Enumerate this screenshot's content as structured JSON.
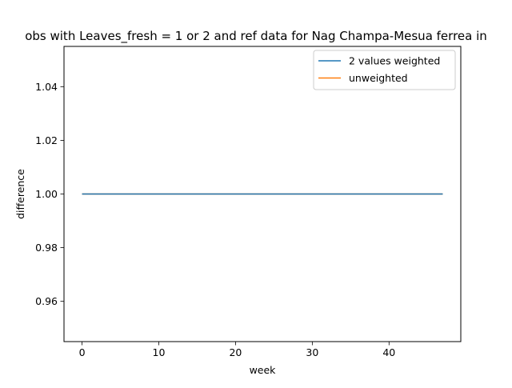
{
  "chart_data": {
    "type": "line",
    "title": "obs with Leaves_fresh = 1 or 2 and ref data for Nag Champa-Mesua ferrea in",
    "xlabel": "week",
    "ylabel": "difference",
    "xlim": [
      -2.35,
      49.35
    ],
    "ylim": [
      0.945,
      1.055
    ],
    "x_ticks": [
      0,
      10,
      20,
      30,
      40
    ],
    "y_ticks": [
      0.96,
      0.98,
      1.0,
      1.02,
      1.04
    ],
    "y_tick_labels": [
      "0.96",
      "0.98",
      "1.00",
      "1.02",
      "1.04"
    ],
    "grid": false,
    "legend_position": "top-right",
    "series": [
      {
        "name": "2 values weighted",
        "color": "#1f77b4",
        "x": [
          0,
          47
        ],
        "y": [
          1.0,
          1.0
        ]
      },
      {
        "name": "unweighted",
        "color": "#ff7f0e",
        "x": [
          0,
          47
        ],
        "y": [
          1.0,
          1.0
        ]
      }
    ],
    "draw_order": [
      1,
      0
    ]
  }
}
